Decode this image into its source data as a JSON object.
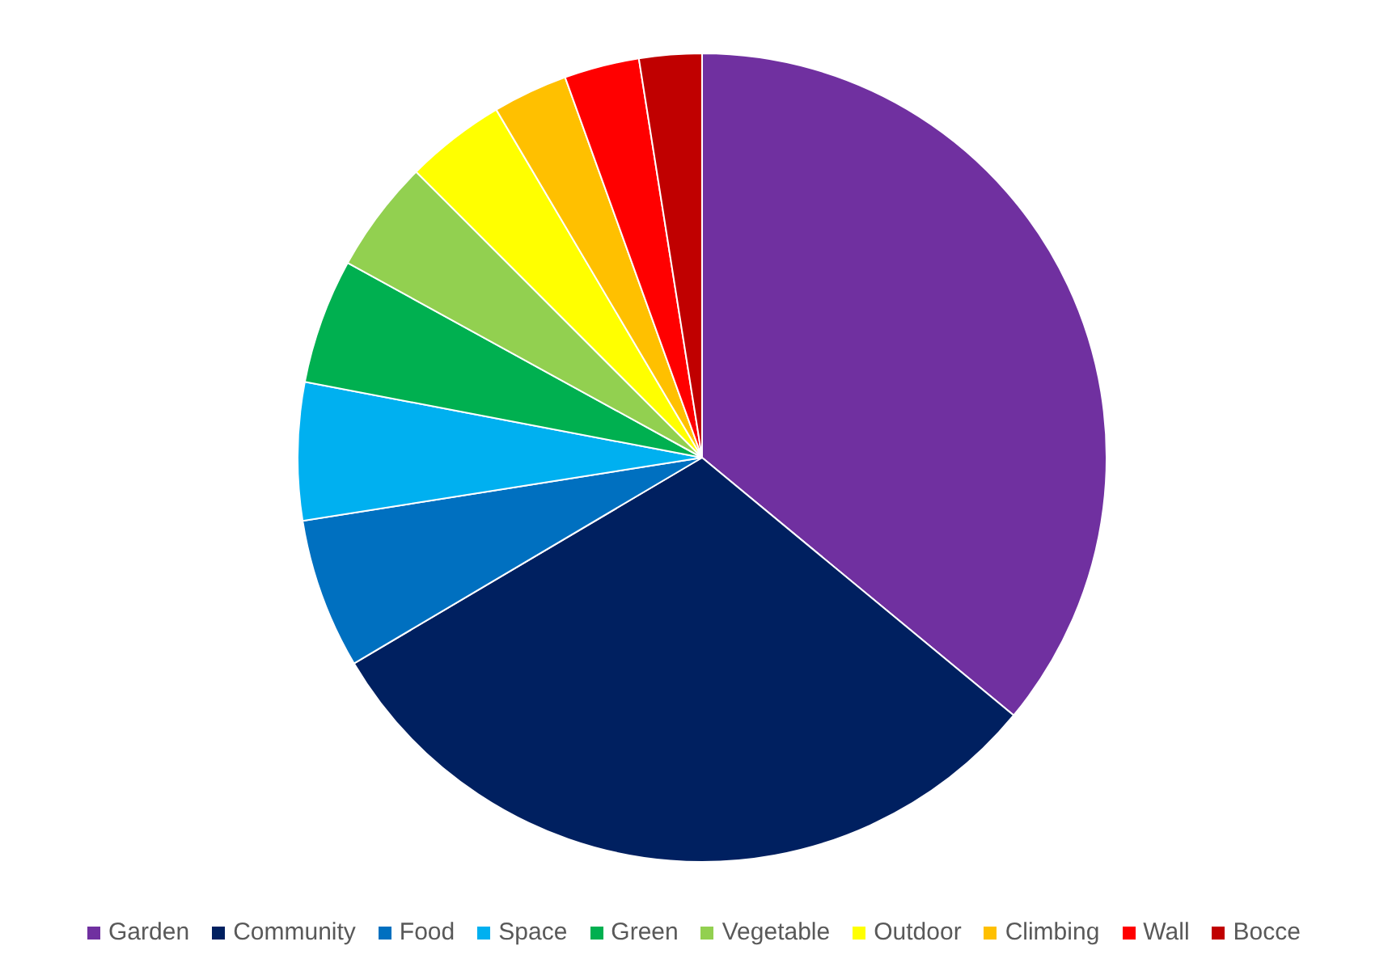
{
  "chart_data": {
    "type": "pie",
    "categories": [
      "Garden",
      "Community",
      "Food",
      "Space",
      "Green",
      "Vegetable",
      "Outdoor",
      "Climbing",
      "Wall",
      "Bocce"
    ],
    "values": [
      36,
      30.5,
      6,
      5.5,
      5,
      4.5,
      4,
      3,
      3,
      2.5
    ],
    "colors": [
      "#7030a0",
      "#002060",
      "#0070c0",
      "#00b0f0",
      "#00b050",
      "#92d050",
      "#ffff00",
      "#ffc000",
      "#ff0000",
      "#c00000"
    ],
    "legend": "bottom"
  }
}
